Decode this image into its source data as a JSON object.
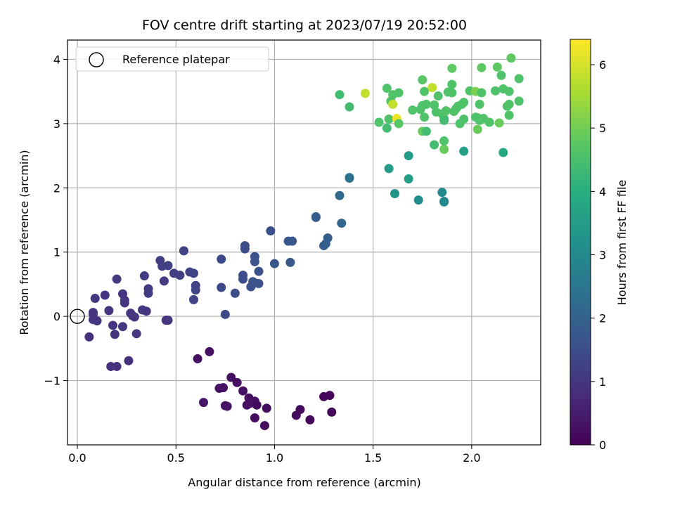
{
  "chart_data": {
    "type": "scatter",
    "title": "FOV centre drift starting at 2023/07/19 20:52:00",
    "xlabel": "Angular distance from reference (arcmin)",
    "ylabel": "Rotation from reference (arcmin)",
    "xlim": [
      -0.05,
      2.35
    ],
    "ylim": [
      -2.0,
      4.3
    ],
    "xticks": [
      0.0,
      0.5,
      1.0,
      1.5,
      2.0
    ],
    "yticks": [
      -1,
      0,
      1,
      2,
      3,
      4
    ],
    "grid": true,
    "legend": {
      "placement": "top-left",
      "entries": [
        "Reference platepar"
      ]
    },
    "reference_point": {
      "x": 0.0,
      "y": 0.0
    },
    "colorbar": {
      "label": "Hours from first FF file",
      "min": 0,
      "max": 6.4,
      "ticks": [
        0,
        1,
        2,
        3,
        4,
        5,
        6
      ],
      "colormap": "viridis"
    },
    "points": [
      {
        "x": 0.61,
        "y": -0.66,
        "c": 0.3
      },
      {
        "x": 0.67,
        "y": -0.55,
        "c": 0.3
      },
      {
        "x": 0.64,
        "y": -1.34,
        "c": 0.4
      },
      {
        "x": 0.72,
        "y": -1.12,
        "c": 0.3
      },
      {
        "x": 0.74,
        "y": -1.11,
        "c": 0.3
      },
      {
        "x": 0.76,
        "y": -1.4,
        "c": 0.35
      },
      {
        "x": 0.75,
        "y": -1.39,
        "c": 0.35
      },
      {
        "x": 0.78,
        "y": -0.95,
        "c": 0.3
      },
      {
        "x": 0.81,
        "y": -1.03,
        "c": 0.3
      },
      {
        "x": 0.84,
        "y": -1.16,
        "c": 0.3
      },
      {
        "x": 0.86,
        "y": -1.38,
        "c": 0.3
      },
      {
        "x": 0.87,
        "y": -1.27,
        "c": 0.3
      },
      {
        "x": 0.88,
        "y": -1.35,
        "c": 0.3
      },
      {
        "x": 0.9,
        "y": -1.32,
        "c": 0.3
      },
      {
        "x": 0.9,
        "y": -1.58,
        "c": 0.2
      },
      {
        "x": 0.91,
        "y": -1.38,
        "c": 0.2
      },
      {
        "x": 0.95,
        "y": -1.7,
        "c": 0.2
      },
      {
        "x": 0.96,
        "y": -1.43,
        "c": 0.2
      },
      {
        "x": 1.11,
        "y": -1.54,
        "c": 0.15
      },
      {
        "x": 1.13,
        "y": -1.45,
        "c": 0.15
      },
      {
        "x": 1.18,
        "y": -1.61,
        "c": 0.1
      },
      {
        "x": 1.25,
        "y": -1.25,
        "c": 0.1
      },
      {
        "x": 1.28,
        "y": -1.23,
        "c": 0.1
      },
      {
        "x": 1.29,
        "y": -1.49,
        "c": 0.1
      },
      {
        "x": 0.06,
        "y": -0.32,
        "c": 0.9
      },
      {
        "x": 0.08,
        "y": 0.06,
        "c": 1.0
      },
      {
        "x": 0.08,
        "y": 0.03,
        "c": 1.0
      },
      {
        "x": 0.08,
        "y": -0.05,
        "c": 1.0
      },
      {
        "x": 0.09,
        "y": 0.28,
        "c": 1.0
      },
      {
        "x": 0.1,
        "y": -0.07,
        "c": 1.0
      },
      {
        "x": 0.14,
        "y": 0.33,
        "c": 1.0
      },
      {
        "x": 0.16,
        "y": 0.09,
        "c": 1.0
      },
      {
        "x": 0.17,
        "y": -0.78,
        "c": 0.9
      },
      {
        "x": 0.18,
        "y": -0.14,
        "c": 1.0
      },
      {
        "x": 0.19,
        "y": -0.28,
        "c": 1.0
      },
      {
        "x": 0.2,
        "y": 0.58,
        "c": 1.1
      },
      {
        "x": 0.2,
        "y": -0.78,
        "c": 0.9
      },
      {
        "x": 0.23,
        "y": -0.16,
        "c": 1.0
      },
      {
        "x": 0.23,
        "y": 0.35,
        "c": 1.0
      },
      {
        "x": 0.24,
        "y": 0.25,
        "c": 1.0
      },
      {
        "x": 0.24,
        "y": 0.21,
        "c": 1.0
      },
      {
        "x": 0.26,
        "y": -0.69,
        "c": 0.9
      },
      {
        "x": 0.27,
        "y": 0.05,
        "c": 1.0
      },
      {
        "x": 0.28,
        "y": 0.01,
        "c": 1.0
      },
      {
        "x": 0.29,
        "y": -0.01,
        "c": 1.0
      },
      {
        "x": 0.3,
        "y": -0.27,
        "c": 1.0
      },
      {
        "x": 0.33,
        "y": 0.1,
        "c": 1.0
      },
      {
        "x": 0.34,
        "y": 0.63,
        "c": 1.1
      },
      {
        "x": 0.35,
        "y": 0.08,
        "c": 1.0
      },
      {
        "x": 0.36,
        "y": 0.43,
        "c": 1.1
      },
      {
        "x": 0.36,
        "y": 0.36,
        "c": 1.1
      },
      {
        "x": 0.42,
        "y": 0.87,
        "c": 1.2
      },
      {
        "x": 0.43,
        "y": 0.78,
        "c": 1.2
      },
      {
        "x": 0.44,
        "y": 0.55,
        "c": 1.1
      },
      {
        "x": 0.45,
        "y": -0.06,
        "c": 1.0
      },
      {
        "x": 0.46,
        "y": -0.06,
        "c": 1.0
      },
      {
        "x": 0.46,
        "y": 0.79,
        "c": 1.2
      },
      {
        "x": 0.49,
        "y": 0.67,
        "c": 1.2
      },
      {
        "x": 0.52,
        "y": 0.64,
        "c": 1.2
      },
      {
        "x": 0.54,
        "y": 1.02,
        "c": 1.3
      },
      {
        "x": 0.57,
        "y": 0.69,
        "c": 1.3
      },
      {
        "x": 0.59,
        "y": 0.67,
        "c": 1.3
      },
      {
        "x": 0.59,
        "y": 0.26,
        "c": 1.3
      },
      {
        "x": 0.6,
        "y": 0.48,
        "c": 1.3
      },
      {
        "x": 0.6,
        "y": 0.41,
        "c": 1.3
      },
      {
        "x": 0.73,
        "y": 0.89,
        "c": 1.4
      },
      {
        "x": 0.73,
        "y": 0.45,
        "c": 1.4
      },
      {
        "x": 0.75,
        "y": 0.03,
        "c": 1.4
      },
      {
        "x": 0.8,
        "y": 0.36,
        "c": 1.5
      },
      {
        "x": 0.84,
        "y": 0.64,
        "c": 1.5
      },
      {
        "x": 0.84,
        "y": 0.58,
        "c": 1.5
      },
      {
        "x": 0.85,
        "y": 1.1,
        "c": 1.5
      },
      {
        "x": 0.85,
        "y": 1.05,
        "c": 1.5
      },
      {
        "x": 0.88,
        "y": 0.46,
        "c": 1.6
      },
      {
        "x": 0.89,
        "y": 0.54,
        "c": 1.6
      },
      {
        "x": 0.9,
        "y": 0.52,
        "c": 1.6
      },
      {
        "x": 0.9,
        "y": 0.93,
        "c": 1.6
      },
      {
        "x": 0.9,
        "y": 0.85,
        "c": 1.6
      },
      {
        "x": 0.92,
        "y": 0.7,
        "c": 1.6
      },
      {
        "x": 0.92,
        "y": 0.51,
        "c": 1.6
      },
      {
        "x": 0.98,
        "y": 1.33,
        "c": 1.6
      },
      {
        "x": 1.0,
        "y": 0.82,
        "c": 1.7
      },
      {
        "x": 1.07,
        "y": 1.17,
        "c": 1.7
      },
      {
        "x": 1.08,
        "y": 0.84,
        "c": 1.7
      },
      {
        "x": 1.09,
        "y": 1.17,
        "c": 1.7
      },
      {
        "x": 1.21,
        "y": 1.54,
        "c": 1.9
      },
      {
        "x": 1.21,
        "y": 1.55,
        "c": 1.9
      },
      {
        "x": 1.25,
        "y": 1.1,
        "c": 1.9
      },
      {
        "x": 1.26,
        "y": 1.13,
        "c": 1.9
      },
      {
        "x": 1.27,
        "y": 1.22,
        "c": 1.9
      },
      {
        "x": 1.33,
        "y": 1.88,
        "c": 2.2
      },
      {
        "x": 1.34,
        "y": 1.45,
        "c": 2.1
      },
      {
        "x": 1.38,
        "y": 2.15,
        "c": 2.4
      },
      {
        "x": 1.38,
        "y": 2.16,
        "c": 2.4
      },
      {
        "x": 1.58,
        "y": 2.3,
        "c": 3.5
      },
      {
        "x": 1.61,
        "y": 1.91,
        "c": 3.3
      },
      {
        "x": 1.68,
        "y": 2.5,
        "c": 3.5
      },
      {
        "x": 1.68,
        "y": 2.14,
        "c": 3.5
      },
      {
        "x": 1.73,
        "y": 1.81,
        "c": 3.1
      },
      {
        "x": 1.85,
        "y": 1.93,
        "c": 3.0
      },
      {
        "x": 1.86,
        "y": 1.78,
        "c": 3.0
      },
      {
        "x": 1.86,
        "y": 1.79,
        "c": 3.0
      },
      {
        "x": 1.96,
        "y": 2.57,
        "c": 3.6
      },
      {
        "x": 2.16,
        "y": 2.55,
        "c": 3.9
      },
      {
        "x": 1.33,
        "y": 3.45,
        "c": 4.4
      },
      {
        "x": 1.38,
        "y": 3.26,
        "c": 4.4
      },
      {
        "x": 1.46,
        "y": 3.47,
        "c": 5.8
      },
      {
        "x": 1.53,
        "y": 3.02,
        "c": 4.6
      },
      {
        "x": 1.57,
        "y": 3.55,
        "c": 4.6
      },
      {
        "x": 1.57,
        "y": 2.93,
        "c": 4.4
      },
      {
        "x": 1.58,
        "y": 3.07,
        "c": 4.6
      },
      {
        "x": 1.59,
        "y": 3.35,
        "c": 4.6
      },
      {
        "x": 1.6,
        "y": 3.45,
        "c": 4.6
      },
      {
        "x": 1.6,
        "y": 3.3,
        "c": 5.8
      },
      {
        "x": 1.62,
        "y": 3.08,
        "c": 6.2
      },
      {
        "x": 1.63,
        "y": 3.0,
        "c": 4.7
      },
      {
        "x": 1.63,
        "y": 3.48,
        "c": 4.6
      },
      {
        "x": 1.7,
        "y": 3.21,
        "c": 4.6
      },
      {
        "x": 1.74,
        "y": 3.22,
        "c": 4.6
      },
      {
        "x": 1.75,
        "y": 3.68,
        "c": 4.7
      },
      {
        "x": 1.75,
        "y": 3.28,
        "c": 4.6
      },
      {
        "x": 1.75,
        "y": 2.88,
        "c": 4.9
      },
      {
        "x": 1.76,
        "y": 3.5,
        "c": 4.6
      },
      {
        "x": 1.76,
        "y": 3.1,
        "c": 4.6
      },
      {
        "x": 1.77,
        "y": 3.3,
        "c": 4.6
      },
      {
        "x": 1.77,
        "y": 2.88,
        "c": 4.4
      },
      {
        "x": 1.8,
        "y": 3.56,
        "c": 5.8
      },
      {
        "x": 1.81,
        "y": 3.29,
        "c": 4.6
      },
      {
        "x": 1.81,
        "y": 2.67,
        "c": 4.4
      },
      {
        "x": 1.82,
        "y": 3.18,
        "c": 4.6
      },
      {
        "x": 1.83,
        "y": 3.43,
        "c": 4.6
      },
      {
        "x": 1.85,
        "y": 3.15,
        "c": 4.6
      },
      {
        "x": 1.86,
        "y": 3.08,
        "c": 4.6
      },
      {
        "x": 1.86,
        "y": 3.05,
        "c": 4.4
      },
      {
        "x": 1.86,
        "y": 2.6,
        "c": 4.9
      },
      {
        "x": 1.86,
        "y": 2.73,
        "c": 4.6
      },
      {
        "x": 1.87,
        "y": 3.2,
        "c": 4.6
      },
      {
        "x": 1.88,
        "y": 3.49,
        "c": 4.6
      },
      {
        "x": 1.9,
        "y": 3.86,
        "c": 4.8
      },
      {
        "x": 1.9,
        "y": 3.61,
        "c": 4.6
      },
      {
        "x": 1.9,
        "y": 3.48,
        "c": 4.6
      },
      {
        "x": 1.91,
        "y": 3.19,
        "c": 4.6
      },
      {
        "x": 1.92,
        "y": 3.23,
        "c": 4.6
      },
      {
        "x": 1.93,
        "y": 3.27,
        "c": 4.6
      },
      {
        "x": 1.94,
        "y": 3.0,
        "c": 4.6
      },
      {
        "x": 1.95,
        "y": 3.3,
        "c": 4.6
      },
      {
        "x": 1.96,
        "y": 3.33,
        "c": 4.6
      },
      {
        "x": 1.96,
        "y": 3.07,
        "c": 4.6
      },
      {
        "x": 1.99,
        "y": 3.51,
        "c": 4.6
      },
      {
        "x": 2.02,
        "y": 3.5,
        "c": 5.1
      },
      {
        "x": 2.02,
        "y": 3.1,
        "c": 4.6
      },
      {
        "x": 2.03,
        "y": 3.09,
        "c": 4.6
      },
      {
        "x": 2.03,
        "y": 2.91,
        "c": 4.9
      },
      {
        "x": 2.04,
        "y": 3.3,
        "c": 4.6
      },
      {
        "x": 2.04,
        "y": 3.05,
        "c": 4.6
      },
      {
        "x": 2.05,
        "y": 3.87,
        "c": 4.8
      },
      {
        "x": 2.05,
        "y": 3.48,
        "c": 4.6
      },
      {
        "x": 2.06,
        "y": 3.08,
        "c": 4.6
      },
      {
        "x": 2.09,
        "y": 3.02,
        "c": 4.6
      },
      {
        "x": 2.12,
        "y": 3.51,
        "c": 4.6
      },
      {
        "x": 2.13,
        "y": 3.88,
        "c": 4.8
      },
      {
        "x": 2.14,
        "y": 3.01,
        "c": 4.9
      },
      {
        "x": 2.15,
        "y": 3.75,
        "c": 4.6
      },
      {
        "x": 2.16,
        "y": 3.54,
        "c": 4.6
      },
      {
        "x": 2.18,
        "y": 3.27,
        "c": 4.6
      },
      {
        "x": 2.19,
        "y": 3.5,
        "c": 4.6
      },
      {
        "x": 2.19,
        "y": 3.13,
        "c": 4.6
      },
      {
        "x": 2.19,
        "y": 3.3,
        "c": 4.6
      },
      {
        "x": 2.2,
        "y": 4.02,
        "c": 4.8
      },
      {
        "x": 2.24,
        "y": 3.7,
        "c": 4.6
      },
      {
        "x": 2.24,
        "y": 3.35,
        "c": 4.6
      }
    ]
  }
}
